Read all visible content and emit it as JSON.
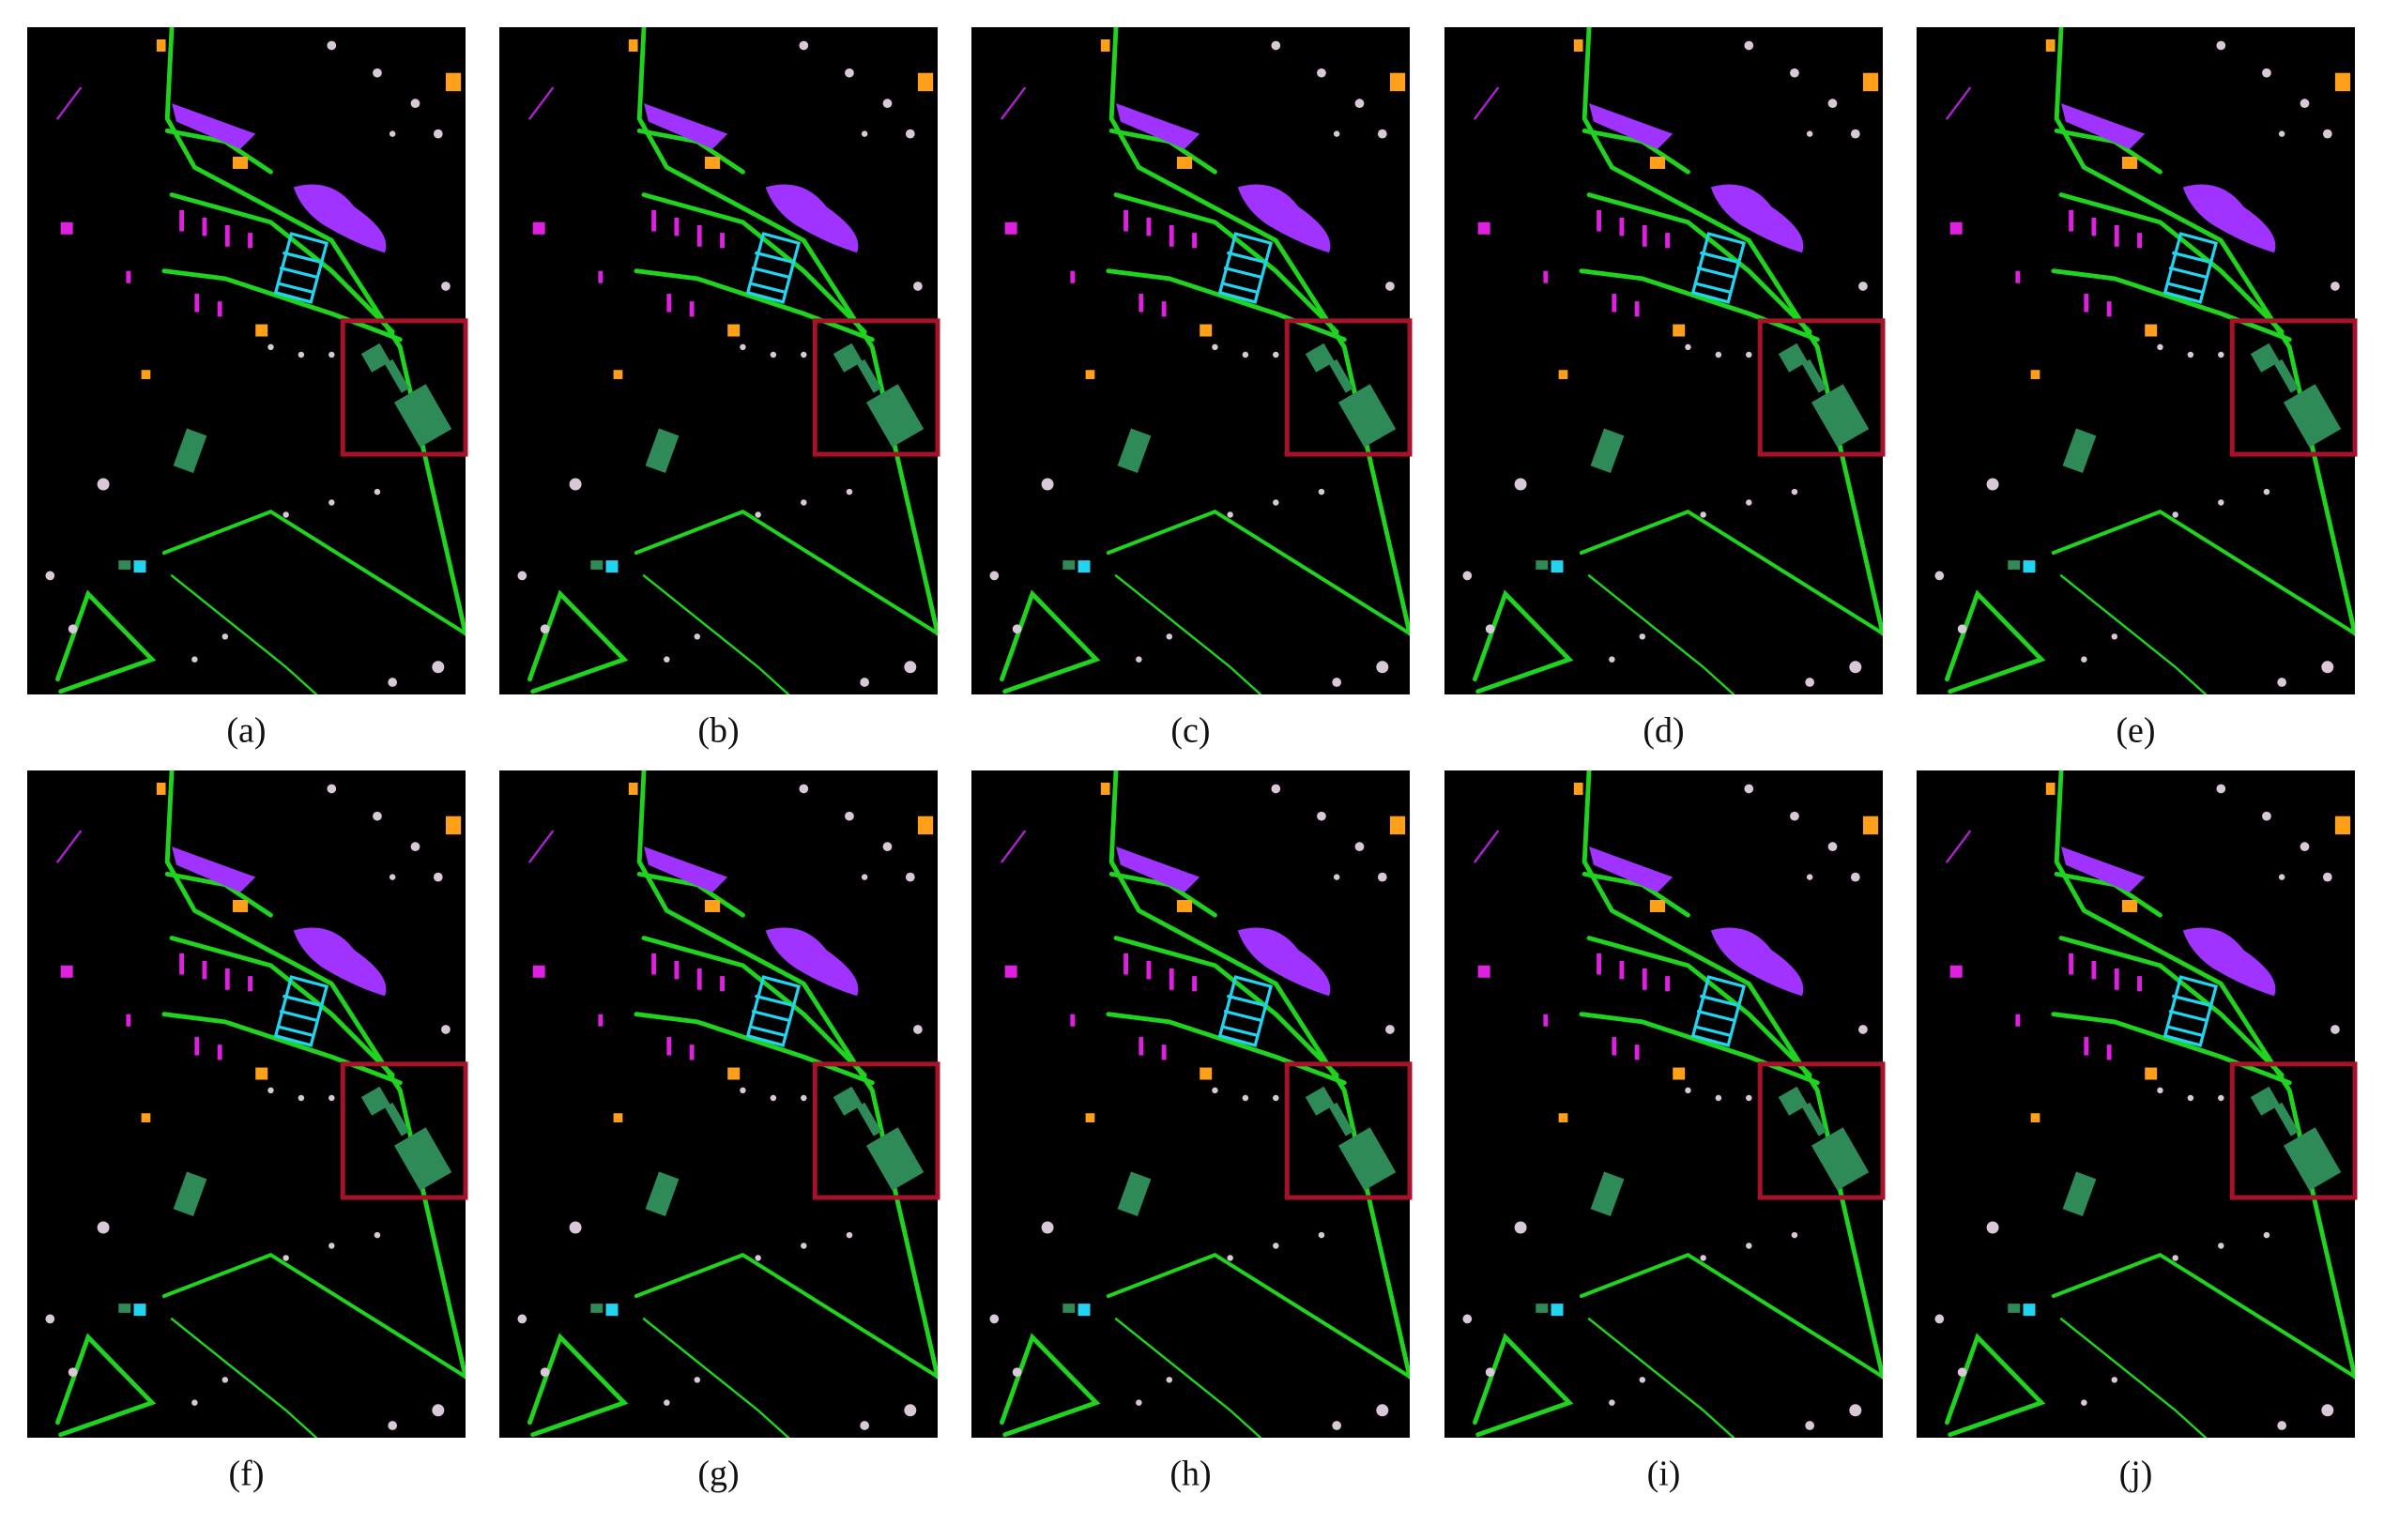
{
  "panels": [
    {
      "label": "(a)"
    },
    {
      "label": "(b)"
    },
    {
      "label": "(c)"
    },
    {
      "label": "(d)"
    },
    {
      "label": "(e)"
    },
    {
      "label": "(f)"
    },
    {
      "label": "(g)"
    },
    {
      "label": "(h)"
    },
    {
      "label": "(i)"
    },
    {
      "label": "(j)"
    }
  ]
}
